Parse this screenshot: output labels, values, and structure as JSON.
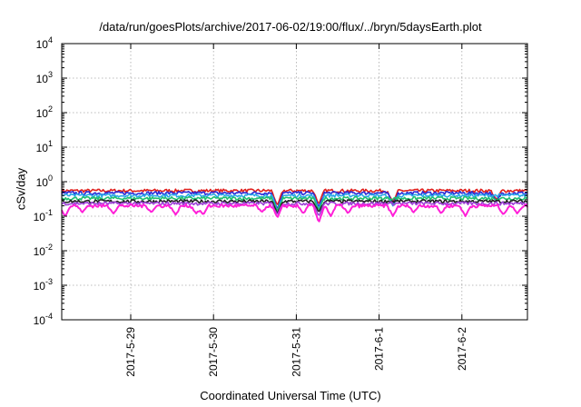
{
  "chart_data": {
    "type": "line",
    "title": "/data/run/goesPlots/archive/2017-06-02/19:00/flux/../bryn/5daysEarth.plot",
    "xlabel": "Coordinated Universal Time (UTC)",
    "ylabel": "cSv/day",
    "y_scale": "log",
    "ylim": [
      0.0001,
      10000
    ],
    "x_range": [
      "2017-05-28 04:00",
      "2017-06-02 19:00"
    ],
    "x_ticks": [
      "2017-5-29",
      "2017-5-30",
      "2017-5-31",
      "2017-6-1",
      "2017-6-2"
    ],
    "y_ticks": [
      {
        "mantissa": "10",
        "exp": "-4",
        "value": 0.0001
      },
      {
        "mantissa": "10",
        "exp": "-3",
        "value": 0.001
      },
      {
        "mantissa": "10",
        "exp": "-2",
        "value": 0.01
      },
      {
        "mantissa": "10",
        "exp": "-1",
        "value": 0.1
      },
      {
        "mantissa": "10",
        "exp": "0",
        "value": 1
      },
      {
        "mantissa": "10",
        "exp": "1",
        "value": 10
      },
      {
        "mantissa": "10",
        "exp": "2",
        "value": 100
      },
      {
        "mantissa": "10",
        "exp": "3",
        "value": 1000
      },
      {
        "mantissa": "10",
        "exp": "4",
        "value": 10000
      }
    ],
    "grid": true,
    "legend": "none",
    "series": [
      {
        "color": "#e0201e",
        "baseline": 0.55,
        "x_start": "2017-05-28 04:00",
        "x_end": "2017-06-02 19:00",
        "dips": [
          {
            "x": "2017-05-30 18:30",
            "y": 0.2
          },
          {
            "x": "2017-05-31 06:30",
            "y": 0.22
          },
          {
            "x": "2017-06-01 04:00",
            "y": 0.25
          },
          {
            "x": "2017-06-02 10:00",
            "y": 0.3
          }
        ]
      },
      {
        "color": "#2a2ad6",
        "baseline": 0.47,
        "x_start": "2017-05-28 04:00",
        "x_end": "2017-06-02 19:00",
        "dips": [
          {
            "x": "2017-05-30 18:30",
            "y": 0.16
          },
          {
            "x": "2017-05-31 06:30",
            "y": 0.18
          },
          {
            "x": "2017-06-01 04:00",
            "y": 0.22
          },
          {
            "x": "2017-06-02 10:00",
            "y": 0.27
          }
        ]
      },
      {
        "color": "#2aa8e8",
        "baseline": 0.4,
        "x_start": "2017-05-28 04:00",
        "x_end": "2017-06-02 19:00",
        "dips": [
          {
            "x": "2017-05-30 18:30",
            "y": 0.14
          },
          {
            "x": "2017-05-31 06:30",
            "y": 0.16
          },
          {
            "x": "2017-06-01 04:00",
            "y": 0.2
          }
        ]
      },
      {
        "color": "#20c070",
        "baseline": 0.33,
        "x_start": "2017-05-28 04:00",
        "x_end": "2017-06-02 19:00",
        "dips": [
          {
            "x": "2017-05-30 18:30",
            "y": 0.14
          },
          {
            "x": "2017-05-31 06:30",
            "y": 0.15
          }
        ]
      },
      {
        "color": "#202020",
        "baseline": 0.27,
        "x_start": "2017-05-28 04:00",
        "x_end": "2017-06-02 19:00",
        "dips": [
          {
            "x": "2017-05-30 18:30",
            "y": 0.12
          },
          {
            "x": "2017-05-31 06:30",
            "y": 0.13
          }
        ]
      },
      {
        "color": "#9b3fd6",
        "baseline": 0.235,
        "x_start": "2017-05-28 04:00",
        "x_end": "2017-06-02 19:00",
        "dips": [
          {
            "x": "2017-05-30 18:30",
            "y": 0.11
          },
          {
            "x": "2017-05-31 06:30",
            "y": 0.1
          }
        ]
      },
      {
        "color": "#ff1fd8",
        "baseline": 0.2,
        "x_start": "2017-05-28 04:00",
        "x_end": "2017-06-02 19:00",
        "dips": [
          {
            "x": "2017-05-28 05:00",
            "y": 0.1
          },
          {
            "x": "2017-05-28 10:00",
            "y": 0.13
          },
          {
            "x": "2017-05-28 19:00",
            "y": 0.12
          },
          {
            "x": "2017-05-29 06:00",
            "y": 0.13
          },
          {
            "x": "2017-05-29 13:00",
            "y": 0.11
          },
          {
            "x": "2017-05-29 19:00",
            "y": 0.12
          },
          {
            "x": "2017-05-29 21:00",
            "y": 0.11
          },
          {
            "x": "2017-05-30 14:00",
            "y": 0.13
          },
          {
            "x": "2017-05-30 18:30",
            "y": 0.09
          },
          {
            "x": "2017-05-31 02:00",
            "y": 0.12
          },
          {
            "x": "2017-05-31 06:30",
            "y": 0.065
          },
          {
            "x": "2017-05-31 10:00",
            "y": 0.1
          },
          {
            "x": "2017-05-31 15:00",
            "y": 0.12
          },
          {
            "x": "2017-06-01 04:00",
            "y": 0.1
          },
          {
            "x": "2017-06-01 10:00",
            "y": 0.13
          },
          {
            "x": "2017-06-01 18:00",
            "y": 0.12
          },
          {
            "x": "2017-06-02 01:00",
            "y": 0.1
          },
          {
            "x": "2017-06-02 12:00",
            "y": 0.11
          },
          {
            "x": "2017-06-02 16:00",
            "y": 0.12
          }
        ]
      }
    ]
  }
}
